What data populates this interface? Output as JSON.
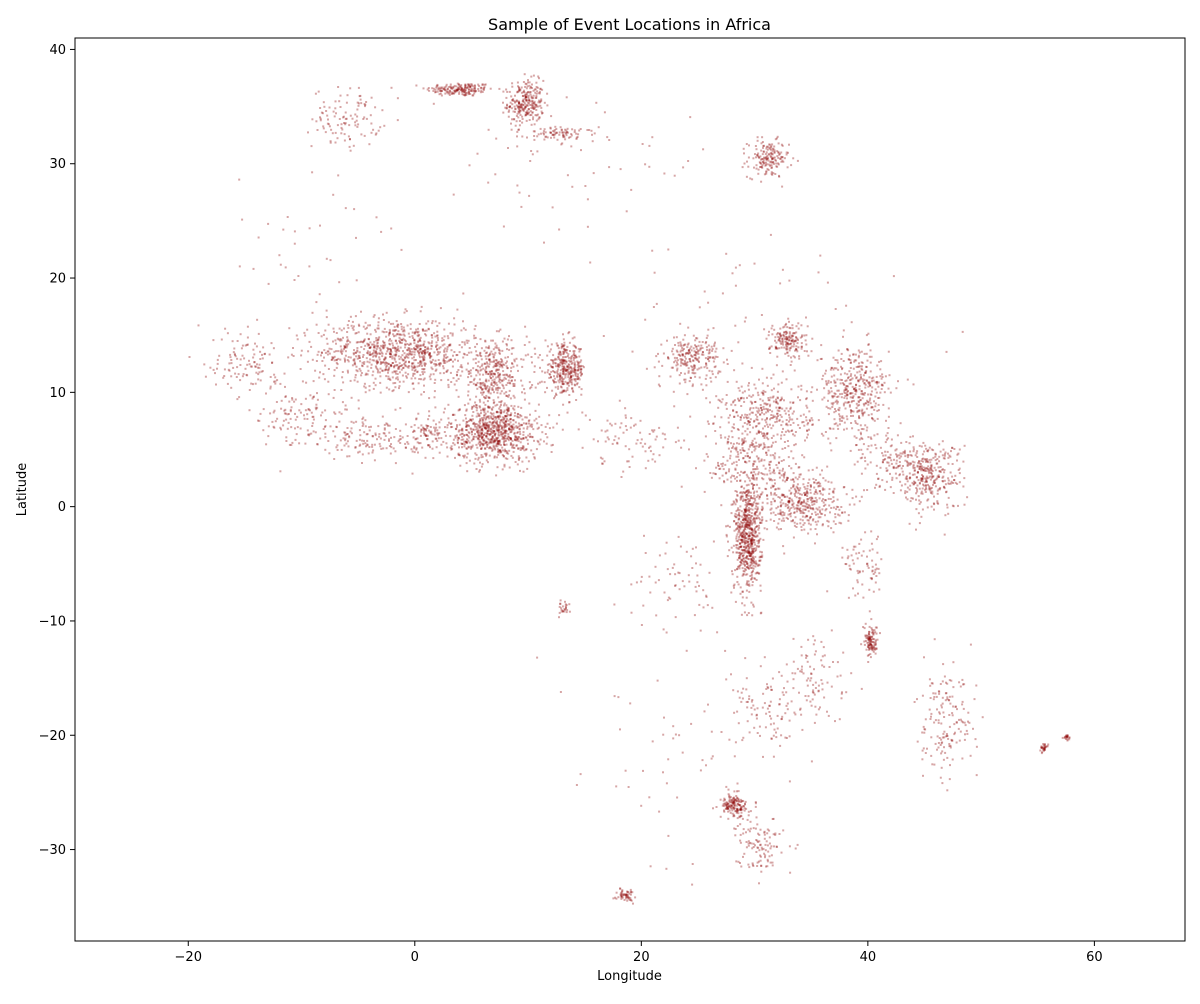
{
  "chart_data": {
    "type": "scatter",
    "title": "Sample of Event Locations in Africa",
    "xlabel": "Longitude",
    "ylabel": "Latitude",
    "xlim": [
      -30,
      68
    ],
    "ylim": [
      -38,
      41
    ],
    "xticks": [
      -20,
      0,
      20,
      40,
      60
    ],
    "yticks": [
      -30,
      -20,
      -10,
      0,
      10,
      20,
      30,
      40
    ],
    "grid": false,
    "legend": "none",
    "marker_color": "#8b0000",
    "marker_alpha": 0.35,
    "series": [
      {
        "clusters": [
          {
            "x": 4,
            "y": 36.5,
            "sx": 1.5,
            "sy": 0.3,
            "n": 180
          },
          {
            "x": 9.8,
            "y": 35.3,
            "sx": 0.8,
            "sy": 1.0,
            "n": 260
          },
          {
            "x": 13,
            "y": 32.6,
            "sx": 1.5,
            "sy": 0.3,
            "n": 80
          },
          {
            "x": -6,
            "y": 34,
            "sx": 1.5,
            "sy": 1.3,
            "n": 110
          },
          {
            "x": 31.2,
            "y": 30.4,
            "sx": 0.9,
            "sy": 0.8,
            "n": 170
          },
          {
            "x": -1.5,
            "y": 13.5,
            "sx": 3.5,
            "sy": 1.5,
            "n": 900
          },
          {
            "x": 7,
            "y": 6.5,
            "sx": 2.0,
            "sy": 1.3,
            "n": 800
          },
          {
            "x": 7,
            "y": 11.5,
            "sx": 1.5,
            "sy": 1.5,
            "n": 350
          },
          {
            "x": 13.3,
            "y": 12,
            "sx": 0.9,
            "sy": 1.1,
            "n": 350
          },
          {
            "x": 24.5,
            "y": 13,
            "sx": 1.2,
            "sy": 1.0,
            "n": 230
          },
          {
            "x": 33,
            "y": 14.5,
            "sx": 0.8,
            "sy": 0.8,
            "n": 160
          },
          {
            "x": 31,
            "y": 8,
            "sx": 2.0,
            "sy": 1.5,
            "n": 320
          },
          {
            "x": 38.8,
            "y": 10,
            "sx": 1.6,
            "sy": 2.0,
            "n": 420
          },
          {
            "x": 29.4,
            "y": -2.5,
            "sx": 0.6,
            "sy": 2.5,
            "n": 650
          },
          {
            "x": 34,
            "y": 0.5,
            "sx": 2.0,
            "sy": 1.3,
            "n": 420
          },
          {
            "x": 45.3,
            "y": 2.7,
            "sx": 1.5,
            "sy": 1.5,
            "n": 320
          },
          {
            "x": 42,
            "y": 4,
            "sx": 1.5,
            "sy": 1.2,
            "n": 110
          },
          {
            "x": 30,
            "y": 4,
            "sx": 2.0,
            "sy": 1.5,
            "n": 220
          },
          {
            "x": 40.3,
            "y": -11.8,
            "sx": 0.3,
            "sy": 0.7,
            "n": 110
          },
          {
            "x": 28.2,
            "y": -26.2,
            "sx": 0.6,
            "sy": 0.5,
            "n": 160
          },
          {
            "x": 30.5,
            "y": -29.5,
            "sx": 1.0,
            "sy": 1.2,
            "n": 110
          },
          {
            "x": 18.6,
            "y": -34,
            "sx": 0.4,
            "sy": 0.3,
            "n": 55
          },
          {
            "x": 31,
            "y": -18,
            "sx": 1.5,
            "sy": 1.5,
            "n": 90
          },
          {
            "x": 47,
            "y": -19,
            "sx": 1.3,
            "sy": 2.5,
            "n": 160
          },
          {
            "x": 55.5,
            "y": -21.1,
            "sx": 0.15,
            "sy": 0.15,
            "n": 30
          },
          {
            "x": 57.5,
            "y": -20.2,
            "sx": 0.15,
            "sy": 0.15,
            "n": 20
          },
          {
            "x": 13.3,
            "y": -8.9,
            "sx": 0.3,
            "sy": 0.3,
            "n": 25
          },
          {
            "x": 23.5,
            "y": -6.5,
            "sx": 2.0,
            "sy": 2.0,
            "n": 60
          },
          {
            "x": -15,
            "y": 13,
            "sx": 1.5,
            "sy": 1.5,
            "n": 110
          },
          {
            "x": -10,
            "y": 8,
            "sx": 2.0,
            "sy": 1.5,
            "n": 130
          },
          {
            "x": -4,
            "y": 6,
            "sx": 2.0,
            "sy": 1.0,
            "n": 130
          },
          {
            "x": 1,
            "y": 6.5,
            "sx": 1.0,
            "sy": 0.8,
            "n": 90
          },
          {
            "x": 20,
            "y": 6,
            "sx": 3.0,
            "sy": 1.5,
            "n": 90
          },
          {
            "x": 35.5,
            "y": -15.5,
            "sx": 1.5,
            "sy": 2.0,
            "n": 90
          },
          {
            "x": 39.5,
            "y": -5,
            "sx": 1.0,
            "sy": 1.5,
            "n": 70
          },
          {
            "x": 16,
            "y": 30,
            "sx": 6.0,
            "sy": 3.0,
            "n": 60
          },
          {
            "x": 30,
            "y": 15,
            "sx": 6.0,
            "sy": 4.0,
            "n": 60
          },
          {
            "x": 24,
            "y": -20,
            "sx": 5.0,
            "sy": 6.0,
            "n": 70
          },
          {
            "x": -10,
            "y": 22,
            "sx": 4.0,
            "sy": 4.0,
            "n": 40
          }
        ]
      }
    ]
  }
}
